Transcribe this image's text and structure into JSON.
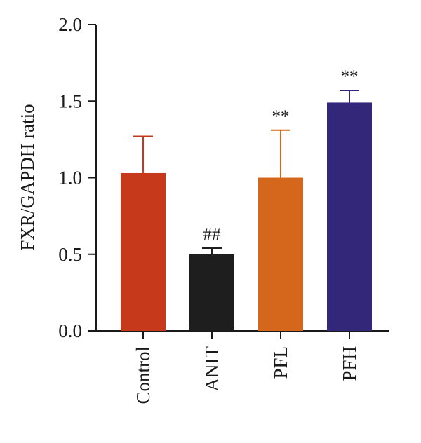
{
  "chart_data": {
    "type": "bar",
    "categories": [
      "Control",
      "ANIT",
      "PFL",
      "PFH"
    ],
    "values": [
      1.03,
      0.5,
      1.0,
      1.49
    ],
    "errors": [
      0.24,
      0.04,
      0.31,
      0.08
    ],
    "annotations": [
      "",
      "##",
      "**",
      "**"
    ],
    "colors": [
      "#c63a1b",
      "#1e1e1e",
      "#d4671c",
      "#33277a"
    ],
    "ylabel": "FXR/GAPDH ratio",
    "xlabel": "",
    "title": "",
    "ylim": [
      0,
      2.0
    ],
    "yticks": [
      "0.0",
      "0.5",
      "1.0",
      "1.5",
      "2.0"
    ],
    "grid": false,
    "legend": "none"
  }
}
